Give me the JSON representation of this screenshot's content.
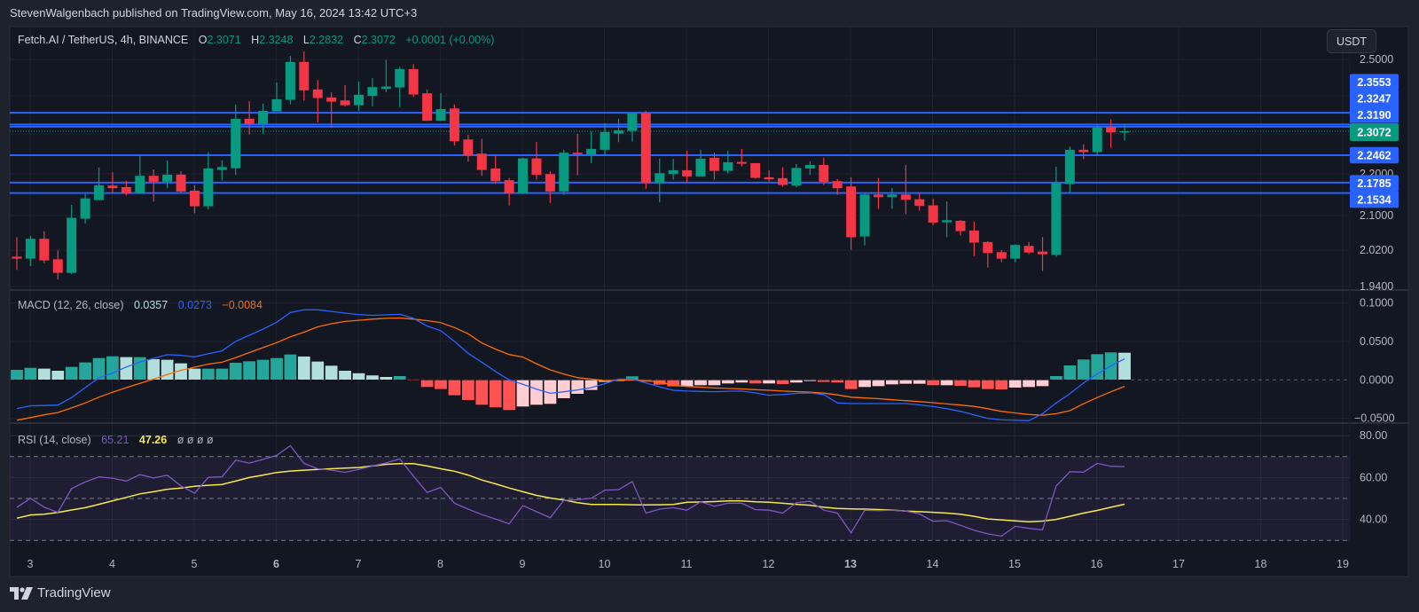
{
  "publish_line": "StevenWalgenbach published on TradingView.com, May 16, 2024 13:42 UTC+3",
  "legend": {
    "symbol": "Fetch.AI / TetherUS, 4h, BINANCE",
    "o_label": "O",
    "o": "2.3071",
    "h_label": "H",
    "h": "2.3248",
    "l_label": "L",
    "l": "2.2832",
    "c_label": "C",
    "c": "2.3072",
    "change": "+0.0001 (+0.00%)"
  },
  "currency_button": "USDT",
  "brand": "TradingView",
  "colors": {
    "up": "#089981",
    "down": "#f23645",
    "level_line": "#2962ff",
    "macd": "#2962ff",
    "signal": "#ff6d00",
    "hist_up_strong": "#26a69a",
    "hist_up_weak": "#b2dfdb",
    "hist_down_strong": "#ff5252",
    "hist_down_weak": "#ffcdd2",
    "rsi": "#7e57c2",
    "rsi_ma": "#f7e94b"
  },
  "x_axis": {
    "labels": [
      "3",
      "4",
      "5",
      "6",
      "7",
      "8",
      "9",
      "10",
      "11",
      "12",
      "13",
      "14",
      "15",
      "16",
      "17",
      "18",
      "19"
    ],
    "emphasized": [
      "6",
      "13"
    ]
  },
  "chart_data": [
    {
      "type": "candlestick",
      "title": "Fetch.AI / TetherUS, 4h, BINANCE",
      "y_scale": "log",
      "y_ticks": [
        "2.5000",
        "2.2000",
        "2.1000",
        "2.0200",
        "1.9400"
      ],
      "price_levels": [
        "2.3553",
        "2.3247",
        "2.3190",
        "2.2462",
        "2.1785",
        "2.1534"
      ],
      "last_price": "2.3072",
      "grid": true,
      "ohlc": [
        [
          2.0055,
          2.0494,
          1.9761,
          2.001
        ],
        [
          2.001,
          2.0527,
          1.9846,
          2.046
        ],
        [
          2.046,
          2.0635,
          1.9911,
          1.997
        ],
        [
          1.9996,
          2.0197,
          1.9551,
          1.9695
        ],
        [
          1.9695,
          2.1252,
          1.9669,
          2.0945
        ],
        [
          2.0924,
          2.1505,
          2.0806,
          2.1405
        ],
        [
          2.1363,
          2.2153,
          2.1363,
          2.1721
        ],
        [
          2.1713,
          2.2037,
          2.1519,
          2.1649
        ],
        [
          2.1677,
          2.1829,
          2.1476,
          2.1519
        ],
        [
          2.1519,
          2.2465,
          2.1519,
          2.1951
        ],
        [
          2.1951,
          2.2109,
          2.1329,
          2.1807
        ],
        [
          2.1807,
          2.2331,
          2.1649,
          2.198
        ],
        [
          2.198,
          2.2066,
          2.1533,
          2.1569
        ],
        [
          2.1591,
          2.1721,
          2.105,
          2.1217
        ],
        [
          2.1217,
          2.254,
          2.1147,
          2.2131
        ],
        [
          2.2095,
          2.2331,
          2.1836,
          2.2167
        ],
        [
          2.2138,
          2.3773,
          2.1973,
          2.3396
        ],
        [
          2.3396,
          2.3856,
          2.2989,
          2.3258
        ],
        [
          2.3258,
          2.3792,
          2.3012,
          2.3604
        ],
        [
          2.3589,
          2.4366,
          2.3589,
          2.3912
        ],
        [
          2.3896,
          2.5102,
          2.3773,
          2.493
        ],
        [
          2.493,
          2.5226,
          2.3872,
          2.4151
        ],
        [
          2.4175,
          2.4429,
          2.3297,
          2.3944
        ],
        [
          2.396,
          2.4095,
          2.3158,
          2.3848
        ],
        [
          2.388,
          2.4294,
          2.3721,
          2.3753
        ],
        [
          2.3753,
          2.4389,
          2.3604,
          2.4031
        ],
        [
          2.3999,
          2.4485,
          2.3721,
          2.4238
        ],
        [
          2.419,
          2.4987,
          2.4103,
          2.4254
        ],
        [
          2.423,
          2.479,
          2.3705,
          2.4732
        ],
        [
          2.4732,
          2.4864,
          2.3968,
          2.4039
        ],
        [
          2.4071,
          2.4175,
          2.3343,
          2.3343
        ],
        [
          2.3343,
          2.4071,
          2.3343,
          2.365
        ],
        [
          2.3666,
          2.3773,
          2.2703,
          2.2815
        ],
        [
          2.286,
          2.2981,
          2.2301,
          2.2465
        ],
        [
          2.2502,
          2.2882,
          2.1951,
          2.2095
        ],
        [
          2.2131,
          2.2465,
          2.1749,
          2.1821
        ],
        [
          2.1843,
          2.1901,
          2.1238,
          2.1519
        ],
        [
          2.1519,
          2.2398,
          2.1505,
          2.2383
        ],
        [
          2.2383,
          2.28,
          2.1857,
          2.1973
        ],
        [
          2.1994,
          2.2066,
          2.1294,
          2.1569
        ],
        [
          2.1569,
          2.2599,
          2.149,
          2.2525
        ],
        [
          2.2525,
          2.3004,
          2.1965,
          2.2487
        ],
        [
          2.248,
          2.3066,
          2.2264,
          2.2621
        ],
        [
          2.2599,
          2.3281,
          2.248,
          2.305
        ],
        [
          2.3012,
          2.3396,
          2.2793,
          2.3097
        ],
        [
          2.3081,
          2.3558,
          2.2808,
          2.3543
        ],
        [
          2.3543,
          2.3604,
          2.1634,
          2.1771
        ],
        [
          2.1771,
          2.2376,
          2.1308,
          2.2016
        ],
        [
          2.1994,
          2.2376,
          2.1857,
          2.2088
        ],
        [
          2.2088,
          2.2577,
          2.1785,
          2.1937
        ],
        [
          2.1937,
          2.2599,
          2.1937,
          2.2376
        ],
        [
          2.2398,
          2.2525,
          2.1857,
          2.2073
        ],
        [
          2.2073,
          2.2577,
          2.2008,
          2.2286
        ],
        [
          2.2294,
          2.2621,
          2.2183,
          2.2249
        ],
        [
          2.2264,
          2.2264,
          2.1879,
          2.1901
        ],
        [
          2.1915,
          2.2088,
          2.1814,
          2.1865
        ],
        [
          2.1894,
          2.2167,
          2.1685,
          2.1728
        ],
        [
          2.1713,
          2.2242,
          2.167,
          2.2145
        ],
        [
          2.2131,
          2.2309,
          2.1973,
          2.2219
        ],
        [
          2.2219,
          2.2398,
          2.1728,
          2.1807
        ],
        [
          2.1821,
          2.1872,
          2.149,
          2.1649
        ],
        [
          2.1692,
          2.1915,
          2.021,
          2.0494
        ],
        [
          2.0514,
          2.1519,
          2.0311,
          2.1497
        ],
        [
          2.1497,
          2.1901,
          2.1154,
          2.1433
        ],
        [
          2.1433,
          2.1656,
          2.1154,
          2.1497
        ],
        [
          2.1497,
          2.2219,
          2.1029,
          2.137
        ],
        [
          2.1384,
          2.1519,
          2.1112,
          2.1224
        ],
        [
          2.1238,
          2.1391,
          2.0771,
          2.0834
        ],
        [
          2.0841,
          2.1335,
          2.0494,
          2.0889
        ],
        [
          2.0875,
          2.0896,
          2.0534,
          2.0635
        ],
        [
          2.0649,
          2.0855,
          2.0068,
          2.0372
        ],
        [
          2.0386,
          2.0406,
          1.9813,
          2.0136
        ],
        [
          2.0156,
          2.0203,
          1.9931,
          2.001
        ],
        [
          2.001,
          2.0332,
          1.9931,
          2.0318
        ],
        [
          2.0298,
          2.0386,
          2.0109,
          2.0149
        ],
        [
          2.017,
          2.05,
          1.9734,
          2.0109
        ],
        [
          2.0095,
          2.2175,
          2.0049,
          2.1771
        ],
        [
          2.1749,
          2.2681,
          2.1548,
          2.2599
        ],
        [
          2.2599,
          2.2741,
          2.2361,
          2.254
        ],
        [
          2.254,
          2.3227,
          2.2458,
          2.3166
        ],
        [
          2.3181,
          2.3381,
          2.2651,
          2.3042
        ],
        [
          2.3071,
          2.3248,
          2.2832,
          2.3072
        ]
      ]
    },
    {
      "type": "bar",
      "title": "MACD (12, 26, close)",
      "last_values": {
        "histogram": "0.0357",
        "macd": "0.0273",
        "signal": "−0.0084"
      },
      "y_ticks": [
        "0.1000",
        "0.0500",
        "0.0000",
        "−0.0500"
      ],
      "histogram": [
        0.0135,
        0.0161,
        0.015,
        0.0123,
        0.0173,
        0.0231,
        0.0288,
        0.0311,
        0.03,
        0.03,
        0.0273,
        0.0265,
        0.0219,
        0.015,
        0.015,
        0.015,
        0.0227,
        0.0246,
        0.0265,
        0.0288,
        0.0334,
        0.0308,
        0.0242,
        0.0188,
        0.0123,
        0.009,
        0.0062,
        0.0042,
        0.0054,
        -0.0005,
        -0.0096,
        -0.0123,
        -0.0204,
        -0.0265,
        -0.0327,
        -0.0361,
        -0.0396,
        -0.035,
        -0.0327,
        -0.0315,
        -0.0242,
        -0.0185,
        -0.0135,
        -0.003,
        -0.0019,
        0.005,
        -0.0027,
        -0.0065,
        -0.0088,
        -0.0088,
        -0.0073,
        -0.0073,
        -0.005,
        -0.0038,
        -0.005,
        -0.005,
        -0.0058,
        -0.0038,
        -0.0019,
        -0.003,
        -0.0038,
        -0.0123,
        -0.0096,
        -0.0085,
        -0.0062,
        -0.0054,
        -0.0054,
        -0.0073,
        -0.0073,
        -0.008,
        -0.01,
        -0.0123,
        -0.0127,
        -0.0104,
        -0.0096,
        -0.0085,
        0.0054,
        0.0192,
        0.0269,
        0.0338,
        0.0361,
        0.0357
      ],
      "macd": [
        -0.0373,
        -0.0337,
        -0.0333,
        -0.0328,
        -0.0231,
        -0.01,
        0.0027,
        0.009,
        0.0167,
        0.0232,
        0.028,
        0.0327,
        0.032,
        0.03,
        0.034,
        0.0377,
        0.05,
        0.058,
        0.066,
        0.075,
        0.0876,
        0.0911,
        0.0911,
        0.089,
        0.0868,
        0.085,
        0.084,
        0.0845,
        0.0853,
        0.08,
        0.07,
        0.064,
        0.05,
        0.0346,
        0.023,
        0.011,
        0.0,
        -0.0058,
        -0.012,
        -0.0174,
        -0.0155,
        -0.013,
        -0.01,
        -0.005,
        0.001,
        0.001,
        -0.004,
        -0.009,
        -0.0135,
        -0.0145,
        -0.015,
        -0.0153,
        -0.0148,
        -0.0145,
        -0.017,
        -0.02,
        -0.019,
        -0.0175,
        -0.017,
        -0.019,
        -0.03,
        -0.0308,
        -0.0308,
        -0.0308,
        -0.0308,
        -0.0308,
        -0.0325,
        -0.0347,
        -0.0375,
        -0.041,
        -0.0455,
        -0.05,
        -0.052,
        -0.0525,
        -0.053,
        -0.044,
        -0.03,
        -0.018,
        -0.004,
        0.0077,
        0.018,
        0.0273
      ],
      "signal": [
        -0.0525,
        -0.049,
        -0.0455,
        -0.0425,
        -0.0365,
        -0.03,
        -0.0225,
        -0.016,
        -0.01,
        -0.0045,
        0.001,
        0.007,
        0.0125,
        0.0165,
        0.0205,
        0.023,
        0.029,
        0.0355,
        0.042,
        0.0485,
        0.056,
        0.062,
        0.069,
        0.073,
        0.076,
        0.0775,
        0.079,
        0.08,
        0.0805,
        0.079,
        0.077,
        0.0745,
        0.068,
        0.06,
        0.048,
        0.04,
        0.033,
        0.0296,
        0.021,
        0.013,
        0.0075,
        0.003,
        0.001,
        -0.001,
        -0.0005,
        0.0,
        -0.001,
        -0.0025,
        -0.007,
        -0.0085,
        -0.0095,
        -0.0105,
        -0.0112,
        -0.0118,
        -0.0127,
        -0.0135,
        -0.0145,
        -0.0152,
        -0.016,
        -0.0172,
        -0.0195,
        -0.0225,
        -0.0235,
        -0.0245,
        -0.0258,
        -0.027,
        -0.0283,
        -0.0297,
        -0.0312,
        -0.0327,
        -0.0345,
        -0.0375,
        -0.041,
        -0.043,
        -0.045,
        -0.046,
        -0.044,
        -0.04,
        -0.031,
        -0.023,
        -0.0155,
        -0.0084
      ]
    },
    {
      "type": "line",
      "title": "RSI (14, close)",
      "last_values": {
        "rsi": "65.21",
        "rsi_ma": "47.26",
        "extra": "ø ø ø ø"
      },
      "y_ticks": [
        "80.00",
        "60.00",
        "40.00"
      ],
      "bands": [
        70,
        50,
        30
      ],
      "rsi": [
        45.7,
        50.1,
        45.8,
        43.4,
        54.7,
        57.9,
        60.3,
        59.7,
        58.3,
        61.4,
        59.8,
        61.1,
        56.0,
        52.5,
        60.1,
        60.3,
        68.3,
        66.9,
        68.7,
        70.6,
        75.2,
        66.8,
        64.2,
        63.5,
        62.5,
        63.9,
        65.5,
        67.0,
        68.9,
        60.7,
        52.9,
        55.3,
        47.7,
        44.9,
        42.3,
        40.2,
        37.9,
        46.6,
        43.7,
        40.8,
        49.1,
        49.4,
        50.1,
        54.0,
        54.2,
        58.1,
        43.0,
        44.9,
        45.6,
        44.4,
        48.4,
        46.3,
        47.7,
        47.7,
        44.7,
        44.4,
        43.0,
        48.0,
        48.7,
        44.4,
        43.0,
        33.6,
        44.4,
        44.2,
        44.4,
        44.0,
        42.6,
        39.1,
        39.4,
        37.2,
        34.8,
        33.1,
        32.0,
        36.7,
        35.7,
        35.0,
        56.0,
        62.8,
        62.6,
        66.8,
        65.4,
        65.21
      ],
      "rsi_ma": [
        40.6,
        42.1,
        42.5,
        43.3,
        44.5,
        45.6,
        47.2,
        48.9,
        50.5,
        52.2,
        53.2,
        54.4,
        55.0,
        55.8,
        56.3,
        56.7,
        58.3,
        60.0,
        61.2,
        62.4,
        63.1,
        63.5,
        63.9,
        64.2,
        64.5,
        64.8,
        65.5,
        66.3,
        66.6,
        66.6,
        65.5,
        64.2,
        63.0,
        61.2,
        58.8,
        57.0,
        55.0,
        53.2,
        51.5,
        50.2,
        49.3,
        48.0,
        47.1,
        47.1,
        47.1,
        47.0,
        46.9,
        47.0,
        47.1,
        48.2,
        48.3,
        48.5,
        48.8,
        48.8,
        48.4,
        48.2,
        47.7,
        47.2,
        46.8,
        45.8,
        45.2,
        45.0,
        44.9,
        44.7,
        44.5,
        44.0,
        43.7,
        43.4,
        43.0,
        42.5,
        41.5,
        40.2,
        39.8,
        39.3,
        38.9,
        39.2,
        40.0,
        41.5,
        43.0,
        44.3,
        45.8,
        47.26
      ]
    }
  ]
}
